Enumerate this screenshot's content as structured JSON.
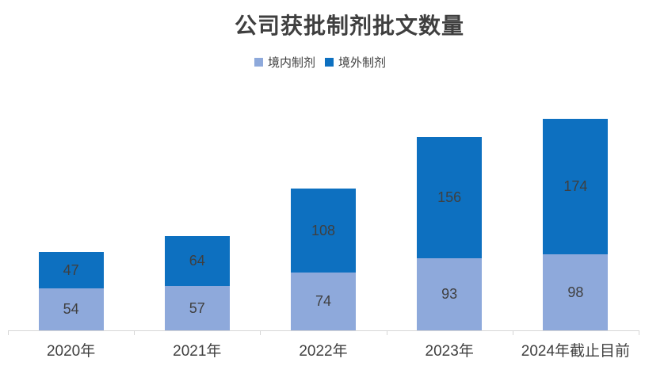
{
  "chart_data": {
    "type": "bar",
    "stacked": true,
    "title": "公司获批制剂批文数量",
    "categories": [
      "2020年",
      "2021年",
      "2022年",
      "2023年",
      "2024年截止目前"
    ],
    "series": [
      {
        "name": "境内制剂",
        "color": "#8EA9DB",
        "values": [
          54,
          57,
          74,
          93,
          98
        ]
      },
      {
        "name": "境外制剂",
        "color": "#0D70C0",
        "values": [
          47,
          64,
          108,
          156,
          174
        ]
      }
    ],
    "totals": [
      101,
      121,
      182,
      249,
      272
    ],
    "data_labels": true,
    "label_color": "#3f3f3f",
    "legend_position": "top",
    "gridlines": false,
    "value_axis_visible": false,
    "axis_line_color": "#d6d6d6",
    "ylim": [
      0,
      280
    ]
  }
}
